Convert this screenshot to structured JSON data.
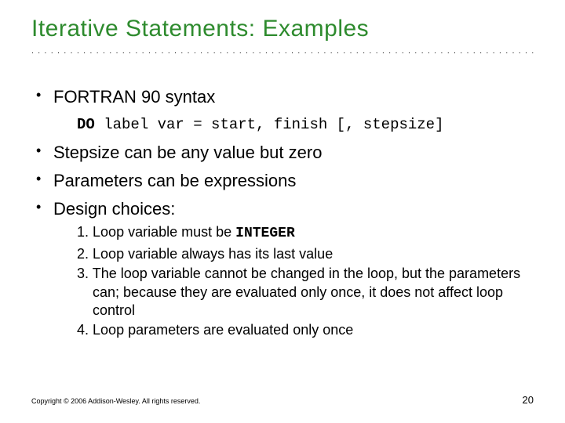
{
  "title": {
    "text": "Iterative Statements: Examples",
    "color": "#2e8b2e"
  },
  "divider": {
    "char": ".",
    "repeat": 78,
    "color": "#000000"
  },
  "bullets": [
    {
      "text": "FORTRAN 90 syntax"
    },
    {
      "text": "Stepsize can be any value but zero"
    },
    {
      "text": "Parameters can be expressions"
    },
    {
      "text": "Design choices:"
    }
  ],
  "code": {
    "keyword": "DO",
    "rest": " label var = start, finish [, stepsize]"
  },
  "design_choices": [
    {
      "n": "1.",
      "pre": "Loop variable must be ",
      "mono": "INTEGER",
      "post": ""
    },
    {
      "n": "2.",
      "pre": "Loop variable always has its last value",
      "mono": "",
      "post": ""
    },
    {
      "n": "3.",
      "pre": "The loop variable cannot be changed in the loop, but the parameters can; because they are evaluated only once, it does not affect loop control",
      "mono": "",
      "post": ""
    },
    {
      "n": "4.",
      "pre": "Loop parameters are evaluated only once",
      "mono": "",
      "post": ""
    }
  ],
  "footer": {
    "copyright": "Copyright © 2006 Addison-Wesley. All rights reserved.",
    "page": "20"
  }
}
